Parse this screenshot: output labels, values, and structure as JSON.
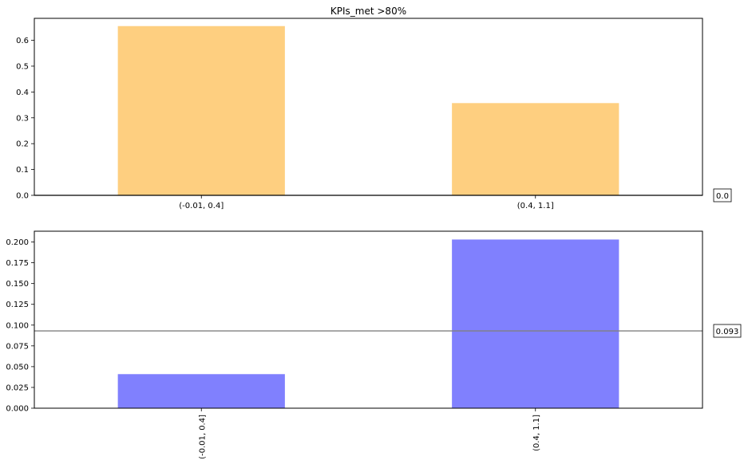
{
  "chart_data": [
    {
      "type": "bar",
      "title": "KPIs_met >80%",
      "categories": [
        "(-0.01, 0.4]",
        "(0.4, 1.1]"
      ],
      "values": [
        0.655,
        0.357
      ],
      "ylim": [
        0,
        0.685
      ],
      "yticks": [
        0.0,
        0.1,
        0.2,
        0.3,
        0.4,
        0.5,
        0.6
      ],
      "ytick_labels": [
        "0.0",
        "0.1",
        "0.2",
        "0.3",
        "0.4",
        "0.5",
        "0.6"
      ],
      "bar_color": "#fecf80",
      "reference_line": {
        "value": 0.0,
        "label": "0.0",
        "color": "#000000"
      },
      "grid": false,
      "xlabel": "",
      "ylabel": ""
    },
    {
      "type": "bar",
      "title": "",
      "categories": [
        "(-0.01, 0.4]",
        "(0.4, 1.1]"
      ],
      "values": [
        0.041,
        0.203
      ],
      "ylim": [
        0,
        0.213
      ],
      "yticks": [
        0.0,
        0.025,
        0.05,
        0.075,
        0.1,
        0.125,
        0.15,
        0.175,
        0.2
      ],
      "ytick_labels": [
        "0.000",
        "0.025",
        "0.050",
        "0.075",
        "0.100",
        "0.125",
        "0.150",
        "0.175",
        "0.200"
      ],
      "bar_color": "#8080fe",
      "reference_line": {
        "value": 0.093,
        "label": "0.093",
        "color": "#808080"
      },
      "xtick_rotation": "vertical",
      "grid": false,
      "xlabel": "",
      "ylabel": ""
    }
  ]
}
